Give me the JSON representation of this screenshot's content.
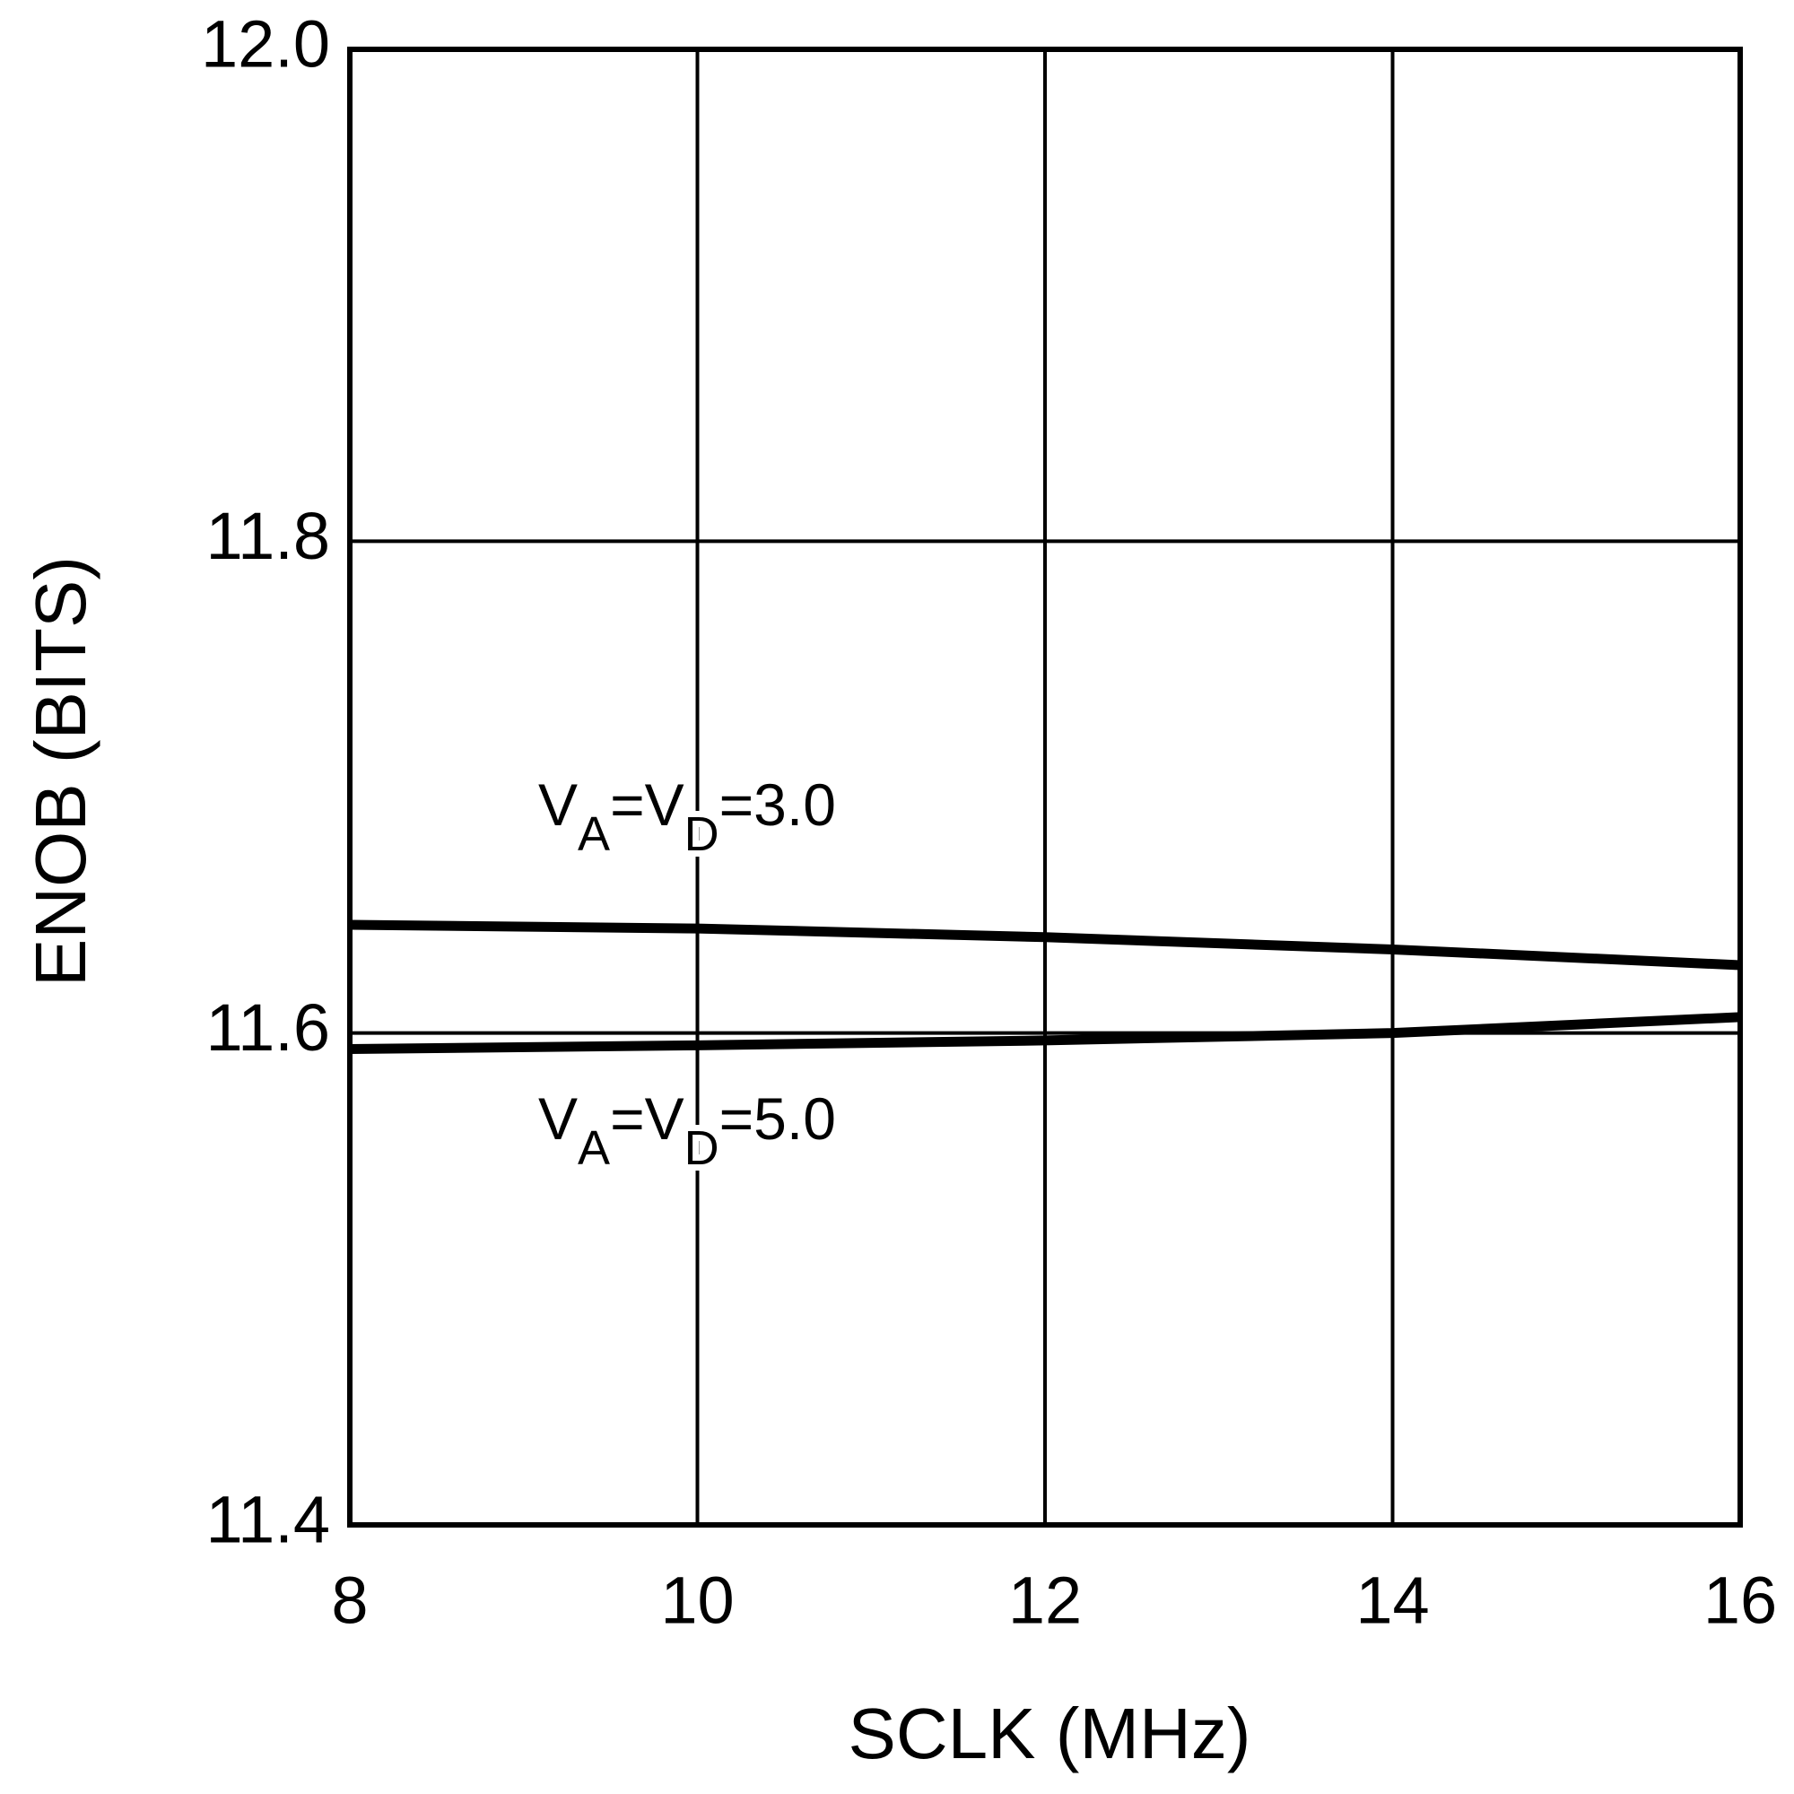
{
  "chart_data": {
    "type": "line",
    "x_label": "SCLK (MHz)",
    "y_label": "ENOB (BITS)",
    "x": [
      8,
      10,
      12,
      14,
      16
    ],
    "series": [
      {
        "color": "#000000",
        "values": [
          11.644,
          11.6425,
          11.639,
          11.634,
          11.6276
        ]
      },
      {
        "color": "#000000",
        "values": [
          11.5935,
          11.595,
          11.597,
          11.6,
          11.6065
        ]
      }
    ],
    "annotations": [
      [
        {
          "text": "V"
        },
        {
          "text": "A",
          "sub": true
        },
        {
          "text": "=V"
        },
        {
          "text": "D",
          "sub": true
        },
        {
          "text": "=3.0"
        }
      ],
      [
        {
          "text": "V"
        },
        {
          "text": "A",
          "sub": true
        },
        {
          "text": "=V"
        },
        {
          "text": "D",
          "sub": true
        },
        {
          "text": "=5.0"
        }
      ]
    ],
    "xlim": [
      8,
      16
    ],
    "xticks": [
      8,
      10,
      12,
      14,
      16
    ],
    "ylim": [
      11.4,
      12.0
    ],
    "yticks": [
      11.4,
      11.6,
      11.8,
      {
        "value": 12.0,
        "label": "12.0"
      }
    ],
    "grid": true
  }
}
